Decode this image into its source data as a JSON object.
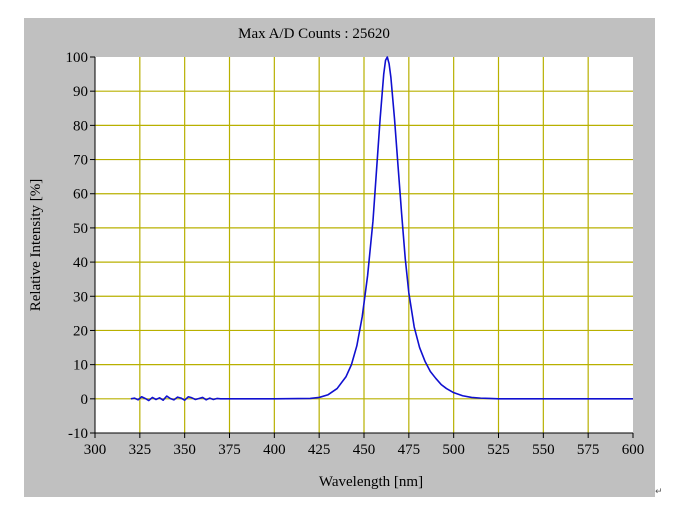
{
  "chart_data": {
    "type": "line",
    "title": "Max A/D Counts : 25620",
    "xlabel": "Wavelength [nm]",
    "ylabel": "Relative Intensity [%]",
    "xlim": [
      300,
      600
    ],
    "ylim": [
      -10,
      100
    ],
    "x_ticks": [
      300,
      325,
      350,
      375,
      400,
      425,
      450,
      475,
      500,
      525,
      550,
      575,
      600
    ],
    "y_ticks": [
      -10,
      0,
      10,
      20,
      30,
      40,
      50,
      60,
      70,
      80,
      90,
      100
    ],
    "grid": true,
    "colors": {
      "line": "#1010d0",
      "grid": "#b8b000",
      "plot_background": "#ffffff",
      "frame_background": "#c0c0c0"
    },
    "series": [
      {
        "x": [
          320,
          322,
          324,
          326,
          328,
          330,
          332,
          334,
          336,
          338,
          340,
          342,
          344,
          346,
          348,
          350,
          352,
          354,
          356,
          358,
          360,
          362,
          364,
          366,
          368,
          370,
          380,
          400,
          420,
          425,
          430,
          435,
          440,
          443,
          446,
          449,
          452,
          455,
          457,
          459,
          461,
          462,
          463,
          464,
          465,
          467,
          469,
          471,
          473,
          475,
          478,
          481,
          484,
          487,
          490,
          493,
          496,
          500,
          505,
          510,
          515,
          520,
          525,
          530,
          540,
          560,
          580,
          600
        ],
        "y": [
          0,
          0.2,
          -0.3,
          0.6,
          0.1,
          -0.5,
          0.4,
          -0.2,
          0.3,
          -0.4,
          0.8,
          0.1,
          -0.3,
          0.5,
          0.2,
          -0.4,
          0.6,
          0.3,
          -0.2,
          0.1,
          0.4,
          -0.3,
          0.2,
          -0.2,
          0.1,
          0,
          0,
          0,
          0.1,
          0.4,
          1.2,
          3,
          6.5,
          10,
          15.5,
          24,
          36,
          52,
          67,
          82,
          95,
          99,
          100,
          98,
          94,
          82,
          68,
          54,
          41,
          31,
          21,
          15,
          11,
          8,
          6,
          4.2,
          3,
          1.8,
          0.9,
          0.4,
          0.2,
          0.1,
          0,
          0,
          0,
          0,
          0,
          0
        ]
      }
    ]
  },
  "decor": {
    "return_mark": "↵"
  }
}
